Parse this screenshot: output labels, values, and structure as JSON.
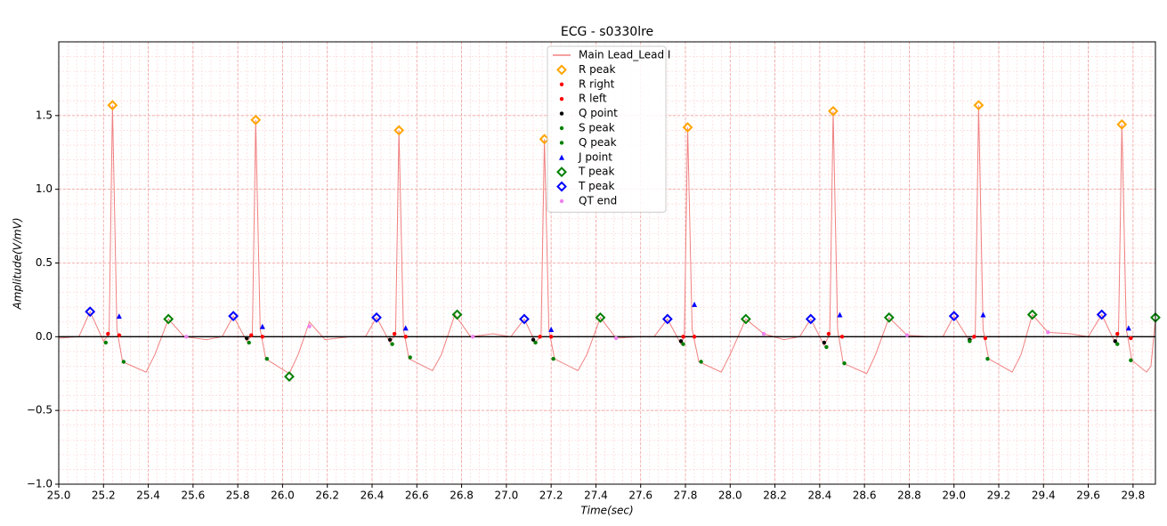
{
  "chart_data": {
    "type": "ecg",
    "title": "ECG - s0330lre",
    "x_label": "Time(sec)",
    "y_label": "Amplitude(V/mV)",
    "xlim": [
      25.0,
      29.9
    ],
    "ylim": [
      -1.0,
      2.0
    ],
    "xticks": [
      {
        "value": 25,
        "label": "25.0"
      },
      25.2,
      25.4,
      25.6,
      25.8,
      {
        "value": 26,
        "label": "26.0"
      },
      26.2,
      26.4,
      26.6,
      26.8,
      {
        "value": 27,
        "label": "27.0"
      },
      27.2,
      27.4,
      27.6,
      27.8,
      {
        "value": 28,
        "label": "28.0"
      },
      28.2,
      28.4,
      28.6,
      28.8,
      {
        "value": 29,
        "label": "29.0"
      },
      29.2,
      29.4,
      29.6,
      29.8
    ],
    "yticks": [
      {
        "value": -1,
        "label": "−1.0"
      },
      {
        "value": -0.5,
        "label": "−0.5"
      },
      {
        "value": 0,
        "label": "0.0"
      },
      0.5,
      {
        "value": 1,
        "label": "1.0"
      },
      1.5
    ],
    "grid": true,
    "hline": 0,
    "legend": "upper center",
    "series": [
      {
        "name": "Main Lead_Lead I",
        "color": "#f08080",
        "marker": "line",
        "x": [
          25.0,
          25.09,
          25.14,
          25.2,
          25.225,
          25.24,
          25.26,
          25.285,
          25.39,
          25.43,
          25.49,
          25.56,
          25.66,
          25.73,
          25.78,
          25.84,
          25.865,
          25.88,
          25.9,
          25.925,
          26.03,
          26.07,
          26.12,
          26.19,
          26.3,
          26.37,
          26.42,
          26.48,
          26.505,
          26.52,
          26.54,
          26.565,
          26.67,
          26.71,
          26.77,
          26.84,
          26.94,
          27.02,
          27.08,
          27.13,
          27.155,
          27.17,
          27.19,
          27.215,
          27.32,
          27.36,
          27.42,
          27.49,
          27.59,
          27.66,
          27.72,
          27.78,
          27.795,
          27.81,
          27.83,
          27.86,
          27.96,
          28.0,
          28.07,
          28.15,
          28.24,
          28.31,
          28.36,
          28.42,
          28.445,
          28.46,
          28.48,
          28.505,
          28.61,
          28.65,
          28.71,
          28.79,
          28.89,
          28.95,
          29.0,
          29.07,
          29.095,
          29.11,
          29.13,
          29.155,
          29.26,
          29.3,
          29.35,
          29.42,
          29.52,
          29.6,
          29.66,
          29.72,
          29.735,
          29.75,
          29.77,
          29.795,
          29.86,
          29.88,
          29.9
        ],
        "values": [
          -0.01,
          0.0,
          0.17,
          -0.03,
          0.02,
          1.57,
          0.05,
          -0.17,
          -0.24,
          -0.12,
          0.12,
          0.0,
          -0.02,
          0.0,
          0.14,
          -0.03,
          0.01,
          1.47,
          0.05,
          -0.15,
          -0.25,
          -0.12,
          0.1,
          -0.02,
          0.0,
          0.0,
          0.13,
          -0.04,
          0.02,
          1.4,
          0.05,
          -0.15,
          -0.23,
          -0.12,
          0.15,
          0.0,
          0.02,
          0.0,
          0.12,
          -0.04,
          0.01,
          1.34,
          0.05,
          -0.15,
          -0.23,
          -0.12,
          0.13,
          -0.01,
          0.0,
          0.0,
          0.12,
          -0.05,
          0.0,
          1.42,
          0.05,
          -0.17,
          -0.24,
          -0.12,
          0.12,
          0.02,
          -0.02,
          0.0,
          0.12,
          -0.06,
          0.02,
          1.53,
          0.05,
          -0.18,
          -0.25,
          -0.12,
          0.13,
          0.01,
          0.0,
          0.0,
          0.14,
          -0.03,
          0.0,
          1.57,
          0.05,
          -0.15,
          -0.24,
          -0.12,
          0.15,
          0.03,
          0.02,
          0.0,
          0.15,
          -0.04,
          0.02,
          1.44,
          0.05,
          -0.16,
          -0.24,
          -0.2,
          0.12
        ]
      },
      {
        "name": "R peak",
        "color": "#ffa500",
        "marker": "diamond",
        "x": [
          25.24,
          25.88,
          26.52,
          27.17,
          27.81,
          28.46,
          29.11,
          29.75
        ],
        "values": [
          1.57,
          1.47,
          1.4,
          1.34,
          1.42,
          1.53,
          1.57,
          1.44
        ]
      },
      {
        "name": "R right",
        "color": "#ff0000",
        "marker": "dot",
        "x": [
          25.27,
          25.91,
          26.55,
          27.2,
          27.84,
          28.5,
          29.14,
          29.79
        ],
        "values": [
          0.01,
          0.0,
          0.0,
          0.0,
          0.0,
          0.0,
          -0.01,
          -0.01
        ]
      },
      {
        "name": "R left",
        "color": "#ff0000",
        "marker": "dot",
        "x": [
          25.22,
          25.86,
          26.5,
          27.15,
          27.79,
          28.44,
          29.09,
          29.73
        ],
        "values": [
          0.02,
          0.01,
          0.02,
          0.0,
          0.0,
          0.02,
          0.0,
          0.02
        ]
      },
      {
        "name": "Q point",
        "color": "#000000",
        "marker": "dot",
        "x": [
          25.84,
          26.48,
          27.12,
          27.78,
          28.42,
          29.07,
          29.72
        ],
        "values": [
          -0.01,
          -0.02,
          -0.02,
          -0.03,
          -0.04,
          -0.02,
          -0.03
        ]
      },
      {
        "name": "S peak",
        "color": "#008000",
        "marker": "dot",
        "x": [
          25.29,
          25.93,
          26.57,
          27.21,
          27.87,
          28.51,
          29.15,
          29.79
        ],
        "values": [
          -0.17,
          -0.15,
          -0.14,
          -0.15,
          -0.17,
          -0.18,
          -0.15,
          -0.16
        ]
      },
      {
        "name": "Q peak",
        "color": "#008000",
        "marker": "dot",
        "x": [
          25.21,
          25.85,
          26.49,
          27.13,
          27.79,
          28.43,
          29.07,
          29.73
        ],
        "values": [
          -0.04,
          -0.04,
          -0.05,
          -0.04,
          -0.05,
          -0.07,
          -0.03,
          -0.05
        ]
      },
      {
        "name": "J point",
        "color": "#0000ff",
        "marker": "triangle",
        "x": [
          25.27,
          25.91,
          26.55,
          27.2,
          27.84,
          28.49,
          29.13,
          29.78
        ],
        "values": [
          0.14,
          0.07,
          0.06,
          0.05,
          0.22,
          0.15,
          0.15,
          0.06
        ]
      },
      {
        "name": "T peak",
        "color": "#008000",
        "marker": "diamond",
        "x": [
          25.49,
          26.03,
          26.78,
          27.42,
          28.07,
          28.71,
          29.35,
          29.9
        ],
        "values": [
          0.12,
          -0.27,
          0.15,
          0.13,
          0.12,
          0.13,
          0.15,
          0.13
        ]
      },
      {
        "name": "T peak",
        "color": "#0000ff",
        "marker": "diamond",
        "x": [
          25.14,
          25.78,
          26.42,
          27.08,
          27.72,
          28.36,
          29.0,
          29.66
        ],
        "values": [
          0.17,
          0.14,
          0.13,
          0.12,
          0.12,
          0.12,
          0.14,
          0.15
        ]
      },
      {
        "name": "QT end",
        "color": "#ee82ee",
        "marker": "dot",
        "x": [
          25.57,
          26.12,
          26.85,
          27.49,
          28.15,
          28.79,
          29.42
        ],
        "values": [
          0.0,
          0.07,
          0.0,
          -0.01,
          0.02,
          0.01,
          0.03
        ]
      }
    ]
  }
}
